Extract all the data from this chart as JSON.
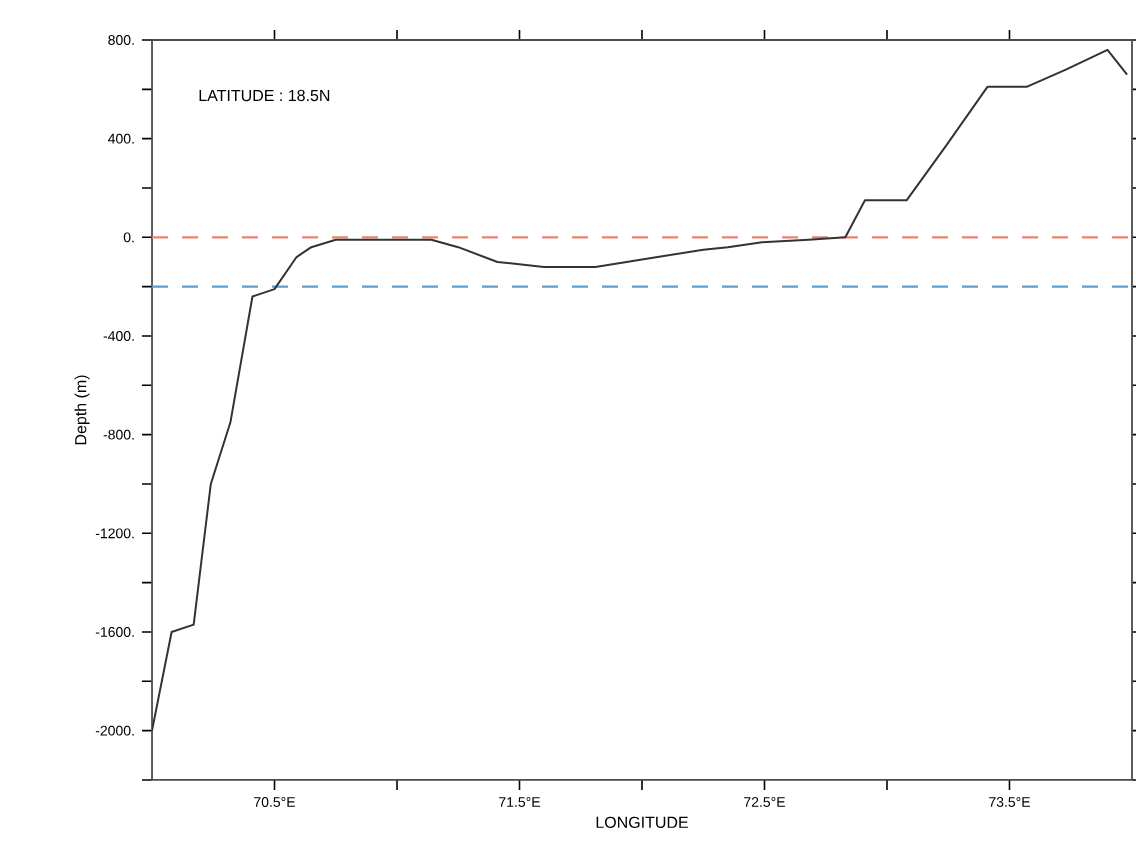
{
  "chart_data": {
    "type": "line",
    "xlabel": "LONGITUDE",
    "ylabel": "Depth (m)",
    "annotations": [
      "LATITUDE : 18.5N"
    ],
    "xlim": [
      70,
      74
    ],
    "ylim": [
      -2200,
      800
    ],
    "xticks": [
      {
        "value": 70.5,
        "label": "70.5°E"
      },
      {
        "value": 71,
        "label": null
      },
      {
        "value": 71.5,
        "label": "71.5°E"
      },
      {
        "value": 72,
        "label": null
      },
      {
        "value": 72.5,
        "label": "72.5°E"
      },
      {
        "value": 73,
        "label": null
      },
      {
        "value": 73.5,
        "label": "73.5°E"
      }
    ],
    "yticks": [
      {
        "value": -2200,
        "label": null
      },
      {
        "value": -2000,
        "label": "-2000."
      },
      {
        "value": -1800,
        "label": null
      },
      {
        "value": -1600,
        "label": "-1600."
      },
      {
        "value": -1400,
        "label": null
      },
      {
        "value": -1200,
        "label": "-1200."
      },
      {
        "value": -1000,
        "label": null
      },
      {
        "value": -800,
        "label": "-800."
      },
      {
        "value": -600,
        "label": null
      },
      {
        "value": -400,
        "label": "-400."
      },
      {
        "value": -200,
        "label": null
      },
      {
        "value": 0,
        "label": "0."
      },
      {
        "value": 200,
        "label": null
      },
      {
        "value": 400,
        "label": "400."
      },
      {
        "value": 600,
        "label": null
      },
      {
        "value": 800,
        "label": "800."
      }
    ],
    "ref_lines": [
      {
        "axis": "y",
        "value": 0,
        "color": "#e8836e",
        "line_style": "dashed"
      },
      {
        "axis": "y",
        "value": -200,
        "color": "#5a9fd4",
        "line_style": "dashed"
      }
    ],
    "grid": false,
    "marker": "none",
    "line_style": "solid",
    "series": [
      {
        "color": "#333333",
        "x": [
          70.0,
          70.08,
          70.17,
          70.24,
          70.32,
          70.41,
          70.5,
          70.59,
          70.65,
          70.75,
          71.14,
          71.25,
          71.41,
          71.6,
          71.81,
          72.0,
          72.25,
          72.35,
          72.49,
          72.68,
          72.83,
          72.91,
          73.08,
          73.24,
          73.41,
          73.57,
          73.73,
          73.9,
          73.98
        ],
        "values": [
          -2000,
          -1600,
          -1570,
          -1000,
          -750,
          -240,
          -210,
          -80,
          -40,
          -10,
          -10,
          -40,
          -100,
          -120,
          -120,
          -90,
          -50,
          -40,
          -20,
          -10,
          0,
          150,
          150,
          370,
          610,
          610,
          680,
          760,
          660
        ]
      }
    ]
  }
}
